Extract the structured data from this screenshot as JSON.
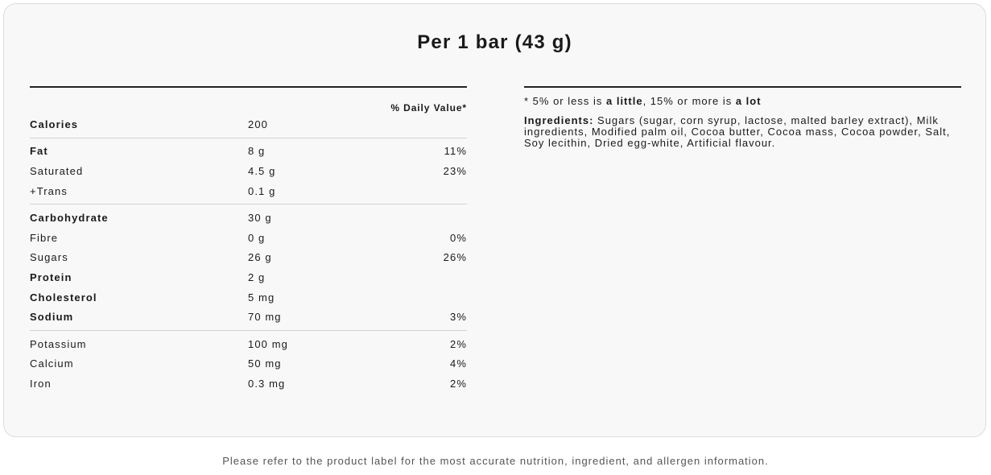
{
  "title": "Per 1 bar (43 g)",
  "daily_value_header": "% Daily Value*",
  "groups": [
    [
      {
        "name": "Calories",
        "amount": "200",
        "dv": "",
        "bold": true
      }
    ],
    [
      {
        "name": "Fat",
        "amount": "8 g",
        "dv": "11%",
        "bold": true
      },
      {
        "name": "Saturated",
        "amount": "4.5 g",
        "dv": "23%",
        "bold": false
      },
      {
        "name": "+Trans",
        "amount": "0.1 g",
        "dv": "",
        "bold": false
      }
    ],
    [
      {
        "name": "Carbohydrate",
        "amount": "30 g",
        "dv": "",
        "bold": true
      },
      {
        "name": "Fibre",
        "amount": "0 g",
        "dv": "0%",
        "bold": false
      },
      {
        "name": "Sugars",
        "amount": "26 g",
        "dv": "26%",
        "bold": false
      },
      {
        "name": "Protein",
        "amount": "2 g",
        "dv": "",
        "bold": true
      },
      {
        "name": "Cholesterol",
        "amount": "5 mg",
        "dv": "",
        "bold": true
      },
      {
        "name": "Sodium",
        "amount": "70 mg",
        "dv": "3%",
        "bold": true
      }
    ],
    [
      {
        "name": "Potassium",
        "amount": "100 mg",
        "dv": "2%",
        "bold": false
      },
      {
        "name": "Calcium",
        "amount": "50 mg",
        "dv": "4%",
        "bold": false
      },
      {
        "name": "Iron",
        "amount": "0.3 mg",
        "dv": "2%",
        "bold": false
      }
    ]
  ],
  "legend": {
    "prefix": "* 5% or less is ",
    "little": "a little",
    "middle": ", 15% or more is ",
    "lot": "a lot"
  },
  "ingredients": {
    "label": "Ingredients:",
    "text": "Sugars (sugar, corn syrup, lactose, malted barley extract), Milk ingredients, Modified palm oil, Cocoa butter, Cocoa mass, Cocoa powder, Salt, Soy lecithin, Dried egg-white, Artificial flavour."
  },
  "footer": "Please refer to the product label for the most accurate nutrition, ingredient, and allergen information."
}
